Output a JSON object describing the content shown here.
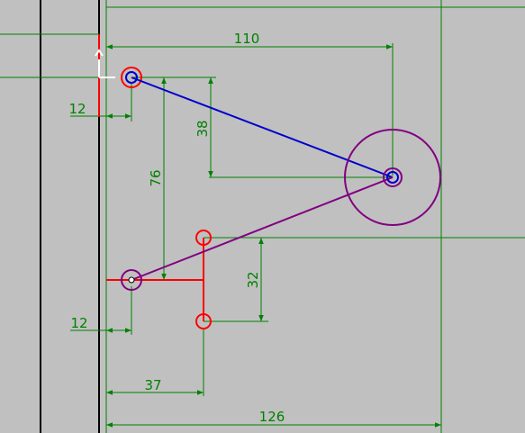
{
  "viewport": {
    "background": "#c0c0c0"
  },
  "colors": {
    "dimension": "#008000",
    "frame": "#000000",
    "link_a": "#0000cc",
    "link_b": "#800080",
    "sketch": "#ff0000",
    "origin_marker": "#ffffff"
  },
  "dimensions": {
    "d110": "110",
    "d38": "38",
    "d76": "76",
    "d12_top": "12",
    "d32": "32",
    "d12_bottom": "12",
    "d37": "37",
    "d126": "126"
  },
  "icons": {
    "origin": "origin-axes-icon"
  }
}
